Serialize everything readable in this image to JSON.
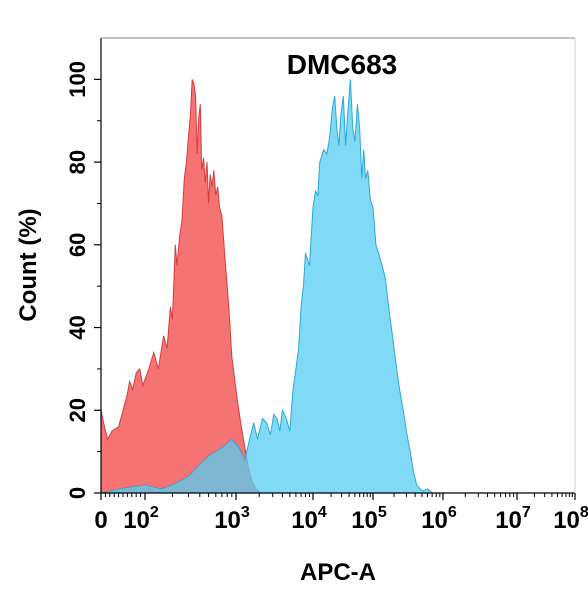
{
  "chart_data": {
    "type": "area",
    "title": "DMC683",
    "xlabel": "APC-A",
    "ylabel": "Count (%)",
    "xscale": "biexponential",
    "xlim": [
      0,
      100000000
    ],
    "ylim": [
      0,
      110
    ],
    "grid": false,
    "legend": "none",
    "x_ticks": [
      {
        "value": 0,
        "base": "0",
        "exp": ""
      },
      {
        "value": 100,
        "base": "10",
        "exp": "2"
      },
      {
        "value": 1000,
        "base": "10",
        "exp": "3"
      },
      {
        "value": 10000,
        "base": "10",
        "exp": "4"
      },
      {
        "value": 100000,
        "base": "10",
        "exp": "5"
      },
      {
        "value": 1000000,
        "base": "10",
        "exp": "6"
      },
      {
        "value": 10000000,
        "base": "10",
        "exp": "7"
      },
      {
        "value": 100000000,
        "base": "10",
        "exp": "8"
      }
    ],
    "y_ticks": [
      {
        "value": 0,
        "label": "0"
      },
      {
        "value": 20,
        "label": "20"
      },
      {
        "value": 40,
        "label": "40"
      },
      {
        "value": 60,
        "label": "60"
      },
      {
        "value": 80,
        "label": "80"
      },
      {
        "value": 100,
        "label": "100"
      }
    ],
    "series": [
      {
        "color": "#f46b6b",
        "stroke": "#d63c3c",
        "points": [
          [
            0,
            20
          ],
          [
            8,
            16
          ],
          [
            15,
            13
          ],
          [
            25,
            15
          ],
          [
            40,
            16
          ],
          [
            50,
            20
          ],
          [
            60,
            24
          ],
          [
            65,
            27
          ],
          [
            72,
            25
          ],
          [
            80,
            29
          ],
          [
            88,
            30
          ],
          [
            95,
            26
          ],
          [
            110,
            30
          ],
          [
            125,
            34
          ],
          [
            140,
            30
          ],
          [
            160,
            38
          ],
          [
            175,
            35
          ],
          [
            190,
            45
          ],
          [
            200,
            42
          ],
          [
            215,
            60
          ],
          [
            225,
            55
          ],
          [
            240,
            62
          ],
          [
            255,
            66
          ],
          [
            270,
            76
          ],
          [
            285,
            80
          ],
          [
            300,
            86
          ],
          [
            315,
            91
          ],
          [
            330,
            100
          ],
          [
            345,
            99
          ],
          [
            360,
            96
          ],
          [
            375,
            82
          ],
          [
            390,
            91
          ],
          [
            405,
            94
          ],
          [
            420,
            78
          ],
          [
            440,
            81
          ],
          [
            460,
            75
          ],
          [
            480,
            80
          ],
          [
            500,
            70
          ],
          [
            520,
            77
          ],
          [
            545,
            74
          ],
          [
            570,
            78
          ],
          [
            600,
            72
          ],
          [
            630,
            74
          ],
          [
            660,
            69
          ],
          [
            700,
            67
          ],
          [
            750,
            58
          ],
          [
            800,
            50
          ],
          [
            850,
            42
          ],
          [
            900,
            33
          ],
          [
            960,
            28
          ],
          [
            1050,
            22
          ],
          [
            1150,
            17
          ],
          [
            1300,
            11
          ],
          [
            1450,
            6
          ],
          [
            1600,
            3
          ],
          [
            1800,
            1
          ],
          [
            2100,
            0
          ]
        ]
      },
      {
        "color": "#56ccf2",
        "stroke": "#2aa9d9",
        "points": [
          [
            0,
            0
          ],
          [
            40,
            1
          ],
          [
            100,
            2
          ],
          [
            150,
            1
          ],
          [
            200,
            2
          ],
          [
            300,
            4
          ],
          [
            400,
            7
          ],
          [
            500,
            9
          ],
          [
            700,
            11
          ],
          [
            900,
            13
          ],
          [
            1100,
            11
          ],
          [
            1300,
            8
          ],
          [
            1500,
            13
          ],
          [
            1700,
            17
          ],
          [
            1900,
            13
          ],
          [
            2200,
            18
          ],
          [
            2500,
            17
          ],
          [
            2800,
            14
          ],
          [
            3100,
            19
          ],
          [
            3400,
            18
          ],
          [
            3700,
            15
          ],
          [
            4000,
            20
          ],
          [
            4500,
            18
          ],
          [
            5000,
            15
          ],
          [
            5500,
            25
          ],
          [
            6000,
            30
          ],
          [
            6500,
            35
          ],
          [
            7000,
            45
          ],
          [
            7500,
            50
          ],
          [
            8000,
            58
          ],
          [
            9000,
            55
          ],
          [
            10000,
            69
          ],
          [
            11000,
            73
          ],
          [
            12000,
            72
          ],
          [
            13000,
            80
          ],
          [
            15000,
            83
          ],
          [
            17000,
            82
          ],
          [
            19000,
            86
          ],
          [
            21000,
            93
          ],
          [
            23000,
            96
          ],
          [
            25000,
            88
          ],
          [
            27000,
            84
          ],
          [
            29000,
            91
          ],
          [
            32000,
            96
          ],
          [
            35000,
            84
          ],
          [
            38000,
            92
          ],
          [
            42000,
            100
          ],
          [
            46000,
            88
          ],
          [
            50000,
            85
          ],
          [
            55000,
            94
          ],
          [
            60000,
            88
          ],
          [
            65000,
            76
          ],
          [
            70000,
            83
          ],
          [
            75000,
            76
          ],
          [
            82000,
            78
          ],
          [
            90000,
            71
          ],
          [
            100000,
            69
          ],
          [
            110000,
            60
          ],
          [
            120000,
            58
          ],
          [
            135000,
            55
          ],
          [
            150000,
            52
          ],
          [
            170000,
            44
          ],
          [
            190000,
            38
          ],
          [
            210000,
            32
          ],
          [
            240000,
            25
          ],
          [
            270000,
            20
          ],
          [
            300000,
            15
          ],
          [
            340000,
            10
          ],
          [
            380000,
            5
          ],
          [
            420000,
            2
          ],
          [
            470000,
            1
          ],
          [
            520000,
            0.5
          ],
          [
            600000,
            1
          ],
          [
            700000,
            0
          ]
        ]
      }
    ]
  }
}
